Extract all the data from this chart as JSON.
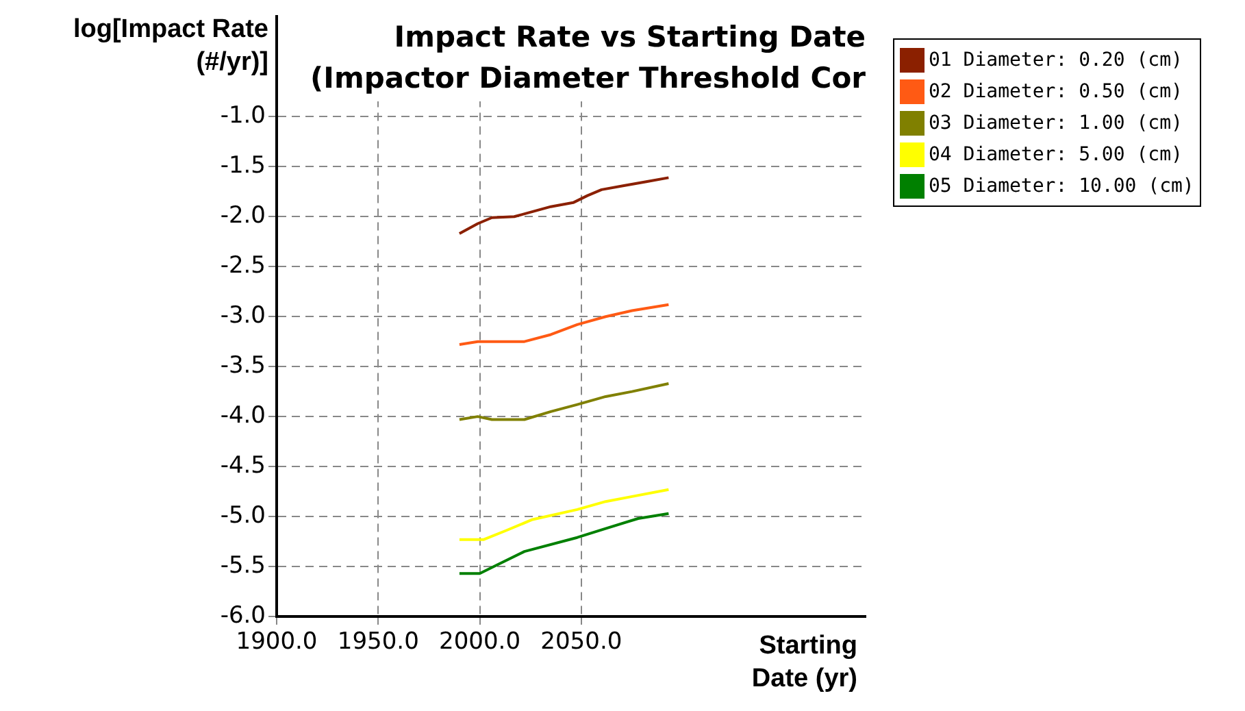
{
  "chart_data": {
    "type": "line",
    "title": "Impact Rate vs Starting Date",
    "subtitle": "(Impactor Diameter Threshold Cor",
    "xlabel": "Starting Date (yr)",
    "ylabel": "log[Impact Rate (#/yr)]",
    "xlim": [
      1900,
      2190
    ],
    "xticks": [
      {
        "value": 1900,
        "label": "1900.0"
      },
      {
        "value": 1950,
        "label": "1950.0"
      },
      {
        "value": 2000,
        "label": "2000.0"
      },
      {
        "value": 2050,
        "label": "2050.0"
      }
    ],
    "ylim": [
      -6,
      0
    ],
    "yticks": [
      {
        "value": -6,
        "label": "-6.0"
      },
      {
        "value": -5.5,
        "label": "-5.5"
      },
      {
        "value": -5,
        "label": "-5.0"
      },
      {
        "value": -4.5,
        "label": "-4.5"
      },
      {
        "value": -4,
        "label": "-4.0"
      },
      {
        "value": -3.5,
        "label": "-3.5"
      },
      {
        "value": -3,
        "label": "-3.0"
      },
      {
        "value": -2.5,
        "label": "-2.5"
      },
      {
        "value": -2,
        "label": "-2.0"
      },
      {
        "value": -1.5,
        "label": "-1.5"
      },
      {
        "value": -1,
        "label": "-1.0"
      }
    ],
    "grid": true,
    "legend": "right",
    "marker": "none",
    "series": [
      {
        "name": "01 Diameter: 0.20 (cm)",
        "color": "#8b2000",
        "x": [
          1990,
          1999,
          2006,
          2017,
          2035,
          2046,
          2053,
          2060,
          2071,
          2082,
          2093
        ],
        "values": [
          -2.17,
          -2.07,
          -2.01,
          -2.0,
          -1.9,
          -1.86,
          -1.79,
          -1.73,
          -1.69,
          -1.65,
          -1.61
        ]
      },
      {
        "name": "02 Diameter: 0.50 (cm)",
        "color": "#ff5a14",
        "x": [
          1990,
          1999,
          2022,
          2035,
          2048,
          2062,
          2075,
          2093
        ],
        "values": [
          -3.28,
          -3.25,
          -3.25,
          -3.18,
          -3.08,
          -3.0,
          -2.94,
          -2.88
        ]
      },
      {
        "name": "03 Diameter: 1.00 (cm)",
        "color": "#808000",
        "x": [
          1990,
          1999,
          2006,
          2022,
          2035,
          2048,
          2062,
          2075,
          2093
        ],
        "values": [
          -4.03,
          -4.0,
          -4.03,
          -4.03,
          -3.95,
          -3.88,
          -3.8,
          -3.75,
          -3.67
        ]
      },
      {
        "name": "04 Diameter: 5.00 (cm)",
        "color": "#ffff00",
        "x": [
          1990,
          2002,
          2013,
          2026,
          2048,
          2062,
          2075,
          2093
        ],
        "values": [
          -5.23,
          -5.23,
          -5.14,
          -5.03,
          -4.93,
          -4.85,
          -4.8,
          -4.73
        ]
      },
      {
        "name": "05 Diameter: 10.00 (cm)",
        "color": "#008000",
        "x": [
          1990,
          2000,
          2008,
          2022,
          2048,
          2062,
          2078,
          2093
        ],
        "values": [
          -5.57,
          -5.57,
          -5.49,
          -5.35,
          -5.21,
          -5.12,
          -5.02,
          -4.97
        ]
      }
    ]
  }
}
